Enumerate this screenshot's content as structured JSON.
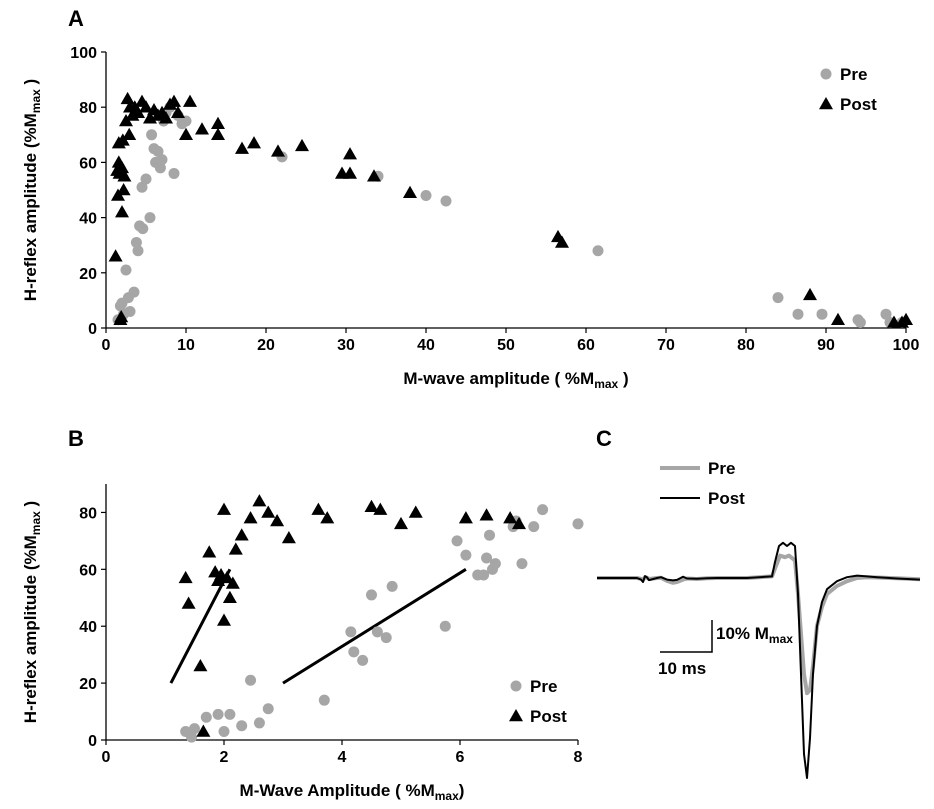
{
  "colors": {
    "pre": "#a6a6a6",
    "post": "#000000",
    "axis": "#000000"
  },
  "chart_data": [
    {
      "panel": "A",
      "type": "scatter",
      "xlabel": "M-wave amplitude ( %M",
      "xlabel_sub": "max",
      "xlabel_end": " )",
      "ylabel": "H-reflex amplitude (%M",
      "ylabel_sub": "max",
      "ylabel_end": " )",
      "xlim": [
        0,
        100
      ],
      "ylim": [
        0,
        100
      ],
      "xticks": [
        0,
        10,
        20,
        30,
        40,
        50,
        60,
        70,
        80,
        90,
        100
      ],
      "yticks": [
        0,
        20,
        40,
        60,
        80,
        100
      ],
      "legend_position": "top-right",
      "series": [
        {
          "name": "Pre",
          "marker": "circle",
          "x": [
            1.5,
            1.8,
            2.0,
            2.2,
            2.5,
            2.8,
            3.0,
            3.5,
            3.8,
            4.0,
            4.2,
            4.5,
            4.6,
            5.0,
            5.5,
            5.7,
            6.0,
            6.2,
            6.5,
            6.8,
            7.0,
            7.2,
            7.5,
            8.0,
            8.5,
            9.0,
            9.5,
            10.0,
            22.0,
            34.0,
            40.0,
            42.5,
            61.5,
            84.0,
            86.5,
            89.5,
            94.0,
            94.3,
            97.5,
            98.0,
            99.5
          ],
          "y": [
            3,
            8,
            9,
            5,
            21,
            11,
            6,
            13,
            31,
            28,
            37,
            51,
            36,
            54,
            40,
            70,
            65,
            60,
            64,
            58,
            61,
            75,
            78,
            80,
            56,
            77,
            74,
            75,
            62,
            55,
            48,
            46,
            28,
            11,
            5,
            5,
            3,
            2,
            5,
            2,
            2
          ]
        },
        {
          "name": "Post",
          "marker": "triangle",
          "x": [
            1.2,
            1.4,
            1.5,
            1.6,
            1.6,
            1.7,
            1.8,
            1.9,
            2.0,
            2.0,
            2.1,
            2.2,
            2.3,
            2.5,
            2.7,
            2.9,
            3.0,
            3.3,
            3.6,
            4.0,
            4.5,
            5.0,
            5.5,
            6.0,
            6.5,
            7.0,
            7.5,
            8.0,
            8.5,
            9.0,
            10.0,
            10.5,
            12.0,
            14.0,
            14.0,
            17.0,
            18.5,
            21.5,
            24.5,
            29.5,
            30.5,
            30.5,
            33.5,
            38.0,
            56.5,
            57.0,
            88.0,
            91.5,
            98.5,
            99.5,
            100.0
          ],
          "y": [
            26,
            57,
            48,
            67,
            60,
            56,
            3,
            4,
            58,
            42,
            68,
            50,
            55,
            75,
            83,
            70,
            80,
            77,
            80,
            78,
            82,
            80,
            76,
            79,
            77,
            78,
            76,
            81,
            82,
            78,
            70,
            82,
            72,
            74,
            70,
            65,
            67,
            64,
            66,
            56,
            63,
            56,
            55,
            49,
            33,
            31,
            12,
            3,
            2,
            2,
            3
          ]
        }
      ]
    },
    {
      "panel": "B",
      "type": "scatter",
      "xlabel": "M-Wave Amplitude ( %M",
      "xlabel_sub": "max",
      "xlabel_end": ")",
      "ylabel": "H-reflex amplitude (%M",
      "ylabel_sub": "max",
      "ylabel_end": " )",
      "xlim": [
        0,
        8
      ],
      "ylim": [
        0,
        90
      ],
      "xticks": [
        0,
        2,
        4,
        6,
        8
      ],
      "yticks": [
        0,
        20,
        40,
        60,
        80
      ],
      "legend_position": "bottom-right",
      "series": [
        {
          "name": "Pre",
          "marker": "circle",
          "x": [
            1.35,
            1.45,
            1.5,
            1.7,
            1.9,
            2.0,
            2.1,
            2.3,
            2.45,
            2.6,
            2.75,
            3.7,
            4.15,
            4.2,
            4.35,
            4.5,
            4.6,
            4.75,
            4.85,
            5.75,
            5.95,
            6.1,
            6.3,
            6.4,
            6.45,
            6.5,
            6.55,
            6.6,
            6.9,
            6.95,
            7.05,
            7.25,
            7.4,
            8.0
          ],
          "y": [
            3,
            1,
            4,
            8,
            9,
            3,
            9,
            5,
            21,
            6,
            11,
            14,
            38,
            31,
            28,
            51,
            38,
            36,
            54,
            40,
            70,
            65,
            58,
            58,
            64,
            72,
            60,
            62,
            75,
            77,
            62,
            75,
            81,
            76
          ],
          "trend": [
            [
              3.0,
              20
            ],
            [
              6.1,
              60
            ]
          ]
        },
        {
          "name": "Post",
          "marker": "triangle",
          "x": [
            1.35,
            1.4,
            1.6,
            1.65,
            1.75,
            1.85,
            1.9,
            1.95,
            2.0,
            2.0,
            2.05,
            2.1,
            2.15,
            2.2,
            2.3,
            2.45,
            2.6,
            2.75,
            2.9,
            3.1,
            3.6,
            3.75,
            4.5,
            4.65,
            5.0,
            5.25,
            6.1,
            6.45,
            6.85,
            7.0
          ],
          "y": [
            57,
            48,
            26,
            3,
            66,
            59,
            56,
            58,
            81,
            42,
            57,
            50,
            55,
            67,
            72,
            78,
            84,
            80,
            77,
            71,
            81,
            78,
            82,
            81,
            76,
            80,
            78,
            79,
            78,
            76
          ],
          "trend": [
            [
              1.1,
              20
            ],
            [
              2.1,
              60
            ]
          ]
        }
      ]
    },
    {
      "panel": "C",
      "type": "line",
      "scale_label": "10% M",
      "scale_label_sub": "max",
      "time_label": "10 ms",
      "legend_position": "top-left",
      "series": [
        {
          "name": "Pre",
          "t": [
            0,
            40,
            44,
            46,
            48,
            50,
            52,
            60,
            64,
            70,
            76,
            80,
            86,
            90,
            100,
            110,
            120,
            150,
            175,
            178,
            183,
            188,
            192,
            198,
            201,
            204,
            207,
            210,
            213,
            216,
            220,
            225,
            230,
            240,
            250,
            260,
            270,
            280,
            300,
            323
          ],
          "y": [
            0,
            0,
            -0.5,
            -1.2,
            0.5,
            0.2,
            -0.6,
            0,
            0.1,
            -1.8,
            -3,
            -2.5,
            -1,
            -0.3,
            -0.6,
            -0.2,
            0,
            0,
            1,
            6,
            14,
            13,
            14,
            11,
            -10,
            -35,
            -60,
            -72,
            -70,
            -55,
            -30,
            -18,
            -10,
            -5,
            -2,
            0,
            0.5,
            0.3,
            -0.2,
            -0.8
          ]
        },
        {
          "name": "Post",
          "t": [
            0,
            40,
            44,
            46,
            48,
            50,
            52,
            60,
            64,
            70,
            76,
            80,
            86,
            90,
            100,
            110,
            120,
            150,
            175,
            178,
            182,
            186,
            190,
            194,
            198,
            201,
            204,
            207,
            210,
            213,
            216,
            220,
            225,
            230,
            240,
            250,
            260,
            270,
            280,
            300,
            323
          ],
          "y": [
            0,
            0,
            -1,
            -2.5,
            1.2,
            0.4,
            -1.3,
            0,
            0.5,
            -1,
            -1.5,
            -1.2,
            0.8,
            -0.3,
            -0.5,
            -0.1,
            0,
            0,
            1,
            10,
            20,
            22,
            20,
            22,
            20,
            -10,
            -60,
            -110,
            -125,
            -100,
            -60,
            -30,
            -15,
            -7,
            -2,
            0.5,
            1.5,
            1,
            0.5,
            -0.3,
            -1
          ]
        }
      ]
    }
  ]
}
